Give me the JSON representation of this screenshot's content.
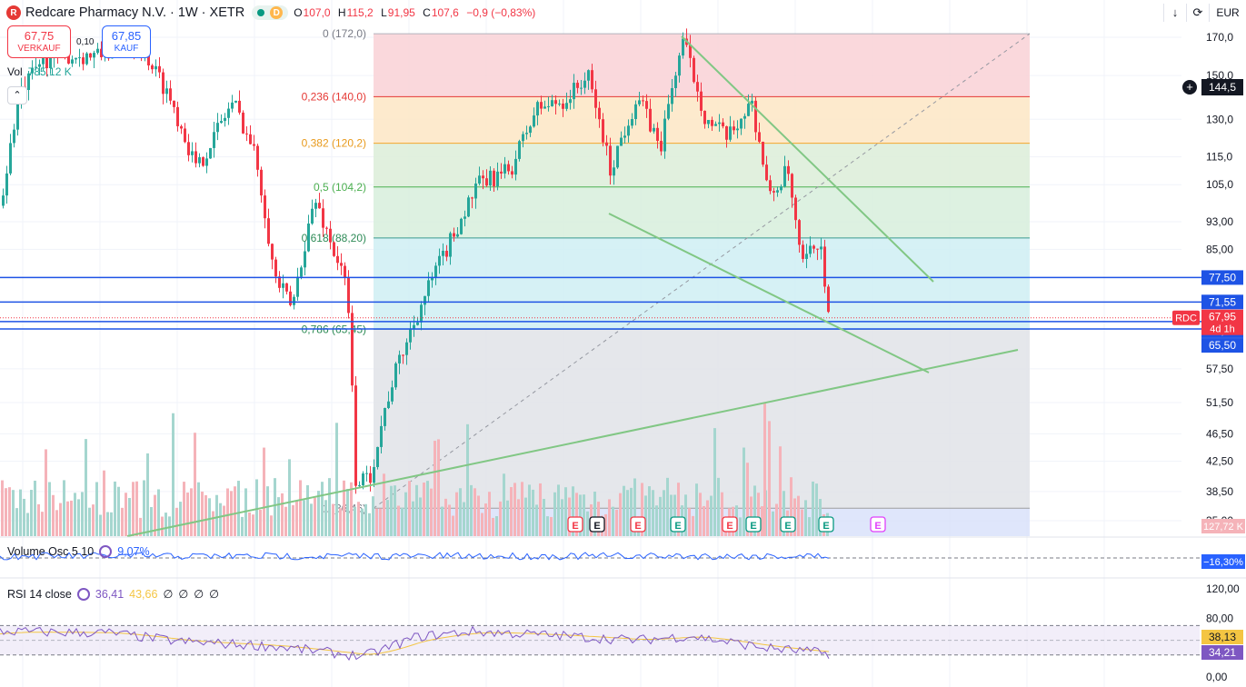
{
  "header": {
    "symbol_title": "Redcare Pharmacy N.V. · 1W · XETR",
    "timeframe_badge": "D",
    "ohlc": {
      "open_label": "O",
      "open": "107,0",
      "high_label": "H",
      "high": "115,2",
      "low_label": "L",
      "low": "91,95",
      "close_label": "C",
      "close": "107,6",
      "change": "−0,9 (−0,83%)"
    }
  },
  "trade": {
    "sell_price": "67,75",
    "sell_label": "VERKAUF",
    "spread": "0,10",
    "buy_price": "67,85",
    "buy_label": "KAUF"
  },
  "volume_label": {
    "title": "Vol",
    "value": "785,12 K"
  },
  "toolbar": {
    "currency": "EUR"
  },
  "colors": {
    "up": "#26a69a",
    "down": "#f23645",
    "hline": "#1e53e5",
    "trend": "#81c784",
    "rsi": "#7e57c2",
    "rsi_ma": "#f4c542",
    "osc": "#2962ff"
  },
  "chart_data": {
    "type": "candlestick",
    "price_axis": {
      "scale": "log",
      "ticks": [
        "170,0",
        "150,0",
        "130,0",
        "115,0",
        "105,0",
        "93,00",
        "85,00",
        "57,50",
        "51,50",
        "46,50",
        "42,50",
        "38,50",
        "35,00"
      ],
      "tick_values": [
        170,
        150,
        130,
        115,
        105,
        93,
        85,
        57.5,
        51.5,
        46.5,
        42.5,
        38.5,
        35
      ]
    },
    "fibonacci": {
      "levels": [
        {
          "ratio": "0",
          "price": 172.0,
          "label": "0 (172,0)"
        },
        {
          "ratio": "0.236",
          "price": 140.0,
          "label": "0,236 (140,0)"
        },
        {
          "ratio": "0.382",
          "price": 120.2,
          "label": "0,382 (120,2)"
        },
        {
          "ratio": "0.5",
          "price": 104.2,
          "label": "0,5 (104,2)"
        },
        {
          "ratio": "0.618",
          "price": 88.2,
          "label": "0,618 (88,20)"
        },
        {
          "ratio": "0.786",
          "price": 65.45,
          "label": "0,786 (65,45)"
        },
        {
          "ratio": "1",
          "price": 36.46,
          "label": "1 (36,46)"
        }
      ]
    },
    "horizontal_lines": [
      {
        "price": 77.5,
        "label": "77,50"
      },
      {
        "price": 71.55,
        "label": "71,55"
      },
      {
        "price": 67.1,
        "label": "67,10"
      },
      {
        "price": 65.5,
        "label": "65,50"
      }
    ],
    "last_price": {
      "value": "67,95",
      "symbol": "RDC",
      "countdown": "4d 1h"
    },
    "crosshair_price": "144,5",
    "volume_axis_label": "127,72 K",
    "earnings_markers": [
      "E",
      "E",
      "E",
      "E",
      "E",
      "E",
      "E",
      "E",
      "E"
    ],
    "volume_oscillator": {
      "title": "Volume Osc 5 10",
      "value": "9,07%",
      "axis_label": "−16,30%"
    },
    "rsi": {
      "title": "RSI 14 close",
      "value": "36,41",
      "ma_value": "43,66",
      "extras": [
        "∅",
        "∅",
        "∅",
        "∅"
      ],
      "axis_ticks": [
        "120,00",
        "80,00",
        "0,00"
      ],
      "rsi_label": "34,21",
      "ma_label": "38,13",
      "upper_band": 70,
      "lower_band": 30
    }
  }
}
